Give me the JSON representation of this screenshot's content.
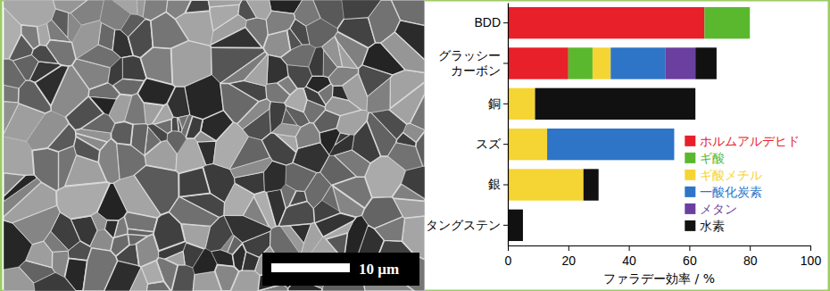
{
  "chart_data": {
    "type": "bar",
    "orientation": "horizontal",
    "stacked": true,
    "categories": [
      "BDD",
      "グラッシー\nカーボン",
      "銅",
      "スズ",
      "銀",
      "タングステン"
    ],
    "series": [
      {
        "name": "ホルムアルデヒド",
        "color": "#e8202a",
        "values": [
          65,
          20,
          0,
          0,
          0,
          0
        ]
      },
      {
        "name": "ギ酸",
        "color": "#5ab82e",
        "values": [
          15,
          8,
          0,
          0,
          0,
          0
        ]
      },
      {
        "name": "ギ酸メチル",
        "color": "#f5d533",
        "values": [
          0,
          6,
          9,
          13,
          25,
          0
        ]
      },
      {
        "name": "一酸化炭素",
        "color": "#2e75c8",
        "values": [
          0,
          18,
          0,
          42,
          0,
          0
        ]
      },
      {
        "name": "メタン",
        "color": "#6a3fa0",
        "values": [
          0,
          10,
          0,
          0,
          0,
          0
        ]
      },
      {
        "name": "水素",
        "color": "#111111",
        "values": [
          0,
          7,
          53,
          0,
          5,
          5
        ]
      }
    ],
    "xlim": [
      0,
      100
    ],
    "xticks": [
      0,
      20,
      40,
      60,
      80,
      100
    ],
    "x_label": "ファラデー効率 / %",
    "legend": "right"
  },
  "image": {
    "scale_bar_label": "10 μm"
  }
}
